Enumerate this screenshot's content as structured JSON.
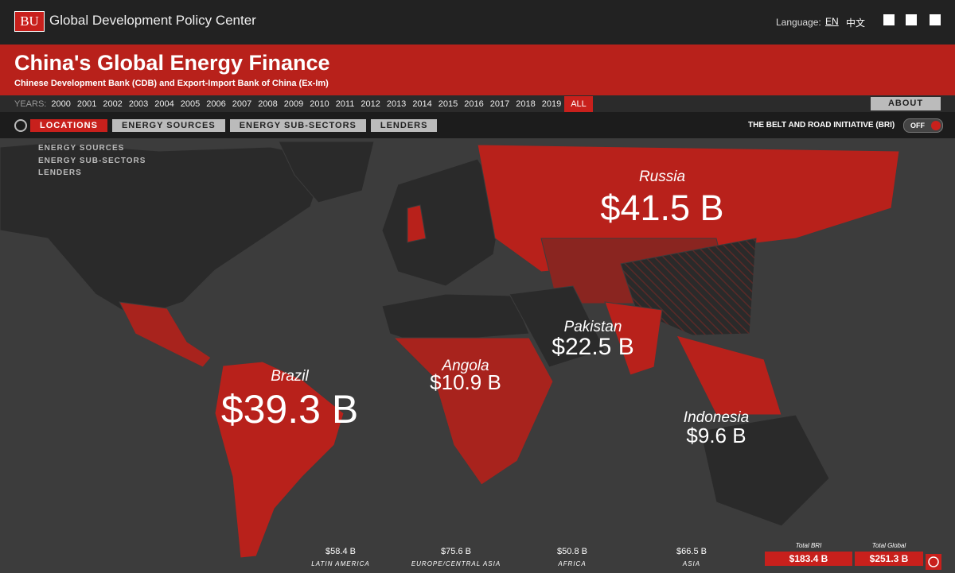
{
  "header": {
    "logo": "BU",
    "org": "Global Development Policy Center",
    "language_label": "Language:",
    "languages": [
      "EN",
      "中文"
    ]
  },
  "banner": {
    "title": "China's Global Energy Finance",
    "subtitle": "Chinese Development Bank (CDB) and Export-Import Bank of China (Ex-Im)"
  },
  "years": {
    "label": "YEARS:",
    "items": [
      "2000",
      "2001",
      "2002",
      "2003",
      "2004",
      "2005",
      "2006",
      "2007",
      "2008",
      "2009",
      "2010",
      "2011",
      "2012",
      "2013",
      "2014",
      "2015",
      "2016",
      "2017",
      "2018",
      "2019",
      "ALL"
    ]
  },
  "about": "ABOUT",
  "tabs": [
    "LOCATIONS",
    "ENERGY SOURCES",
    "ENERGY SUB-SECTORS",
    "LENDERS"
  ],
  "bri": {
    "label": "THE BELT AND ROAD INITIATIVE (BRI)",
    "toggle": "OFF"
  },
  "dropdown": [
    "ENERGY SOURCES",
    "ENERGY SUB-SECTORS",
    "LENDERS"
  ],
  "map_labels": [
    {
      "name": "Russia",
      "amount": "$41.5 B"
    },
    {
      "name": "Brazil",
      "amount": "$39.3 B"
    },
    {
      "name": "Pakistan",
      "amount": "$22.5 B"
    },
    {
      "name": "Angola",
      "amount": "$10.9 B"
    },
    {
      "name": "Indonesia",
      "amount": "$9.6 B"
    }
  ],
  "regions": [
    {
      "amount": "$58.4 B",
      "name": "LATIN AMERICA"
    },
    {
      "amount": "$75.6 B",
      "name": "EUROPE/CENTRAL ASIA"
    },
    {
      "amount": "$50.8 B",
      "name": "AFRICA"
    },
    {
      "amount": "$66.5 B",
      "name": "ASIA"
    }
  ],
  "totals": [
    {
      "label": "Total BRI",
      "amount": "$183.4 B"
    },
    {
      "label": "Total Global",
      "amount": "$251.3 B"
    }
  ]
}
